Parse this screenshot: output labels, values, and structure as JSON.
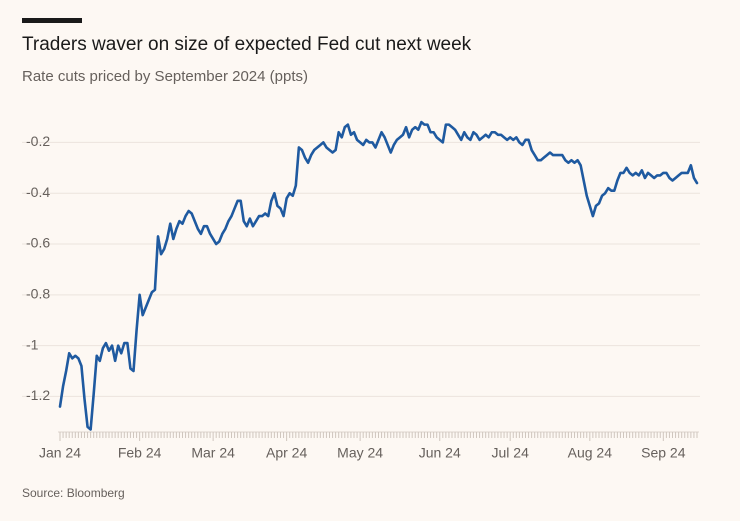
{
  "chart_data": {
    "type": "line",
    "title": "Traders waver on size of expected Fed cut next week",
    "subtitle": "Rate cuts priced by September 2024 (ppts)",
    "source": "Source: Bloomberg",
    "categories": [
      "Jan 24",
      null,
      null,
      null,
      null,
      null,
      null,
      null,
      null,
      null,
      null,
      null,
      null,
      null,
      null,
      null,
      null,
      null,
      null,
      null,
      null,
      null,
      null,
      null,
      null,
      null,
      "Feb 24",
      null,
      null,
      null,
      null,
      null,
      null,
      null,
      null,
      null,
      null,
      null,
      null,
      null,
      null,
      null,
      null,
      null,
      null,
      null,
      null,
      null,
      null,
      null,
      "Mar 24",
      null,
      null,
      null,
      null,
      null,
      null,
      null,
      null,
      null,
      null,
      null,
      null,
      null,
      null,
      null,
      null,
      null,
      null,
      null,
      null,
      null,
      null,
      null,
      "Apr 24",
      null,
      null,
      null,
      null,
      null,
      null,
      null,
      null,
      null,
      null,
      null,
      null,
      null,
      null,
      null,
      null,
      null,
      null,
      null,
      null,
      null,
      null,
      null,
      "May 24",
      null,
      null,
      null,
      null,
      null,
      null,
      null,
      null,
      null,
      null,
      null,
      null,
      null,
      null,
      null,
      null,
      null,
      null,
      null,
      null,
      null,
      null,
      null,
      null,
      null,
      "Jun 24",
      null,
      null,
      null,
      null,
      null,
      null,
      null,
      null,
      null,
      null,
      null,
      null,
      null,
      null,
      null,
      null,
      null,
      null,
      null,
      null,
      null,
      null,
      "Jul 24",
      null,
      null,
      null,
      null,
      null,
      null,
      null,
      null,
      null,
      null,
      null,
      null,
      null,
      null,
      null,
      null,
      null,
      null,
      null,
      null,
      null,
      null,
      null,
      null,
      null,
      "Aug 24",
      null,
      null,
      null,
      null,
      null,
      null,
      null,
      null,
      null,
      null,
      null,
      null,
      null,
      null,
      null,
      null,
      null,
      null,
      null,
      null,
      null,
      null,
      null,
      "Sep 24",
      null,
      null,
      null,
      null,
      null,
      null,
      null,
      null,
      null,
      null,
      null
    ],
    "values": [
      -1.24,
      -1.16,
      -1.1,
      -1.03,
      -1.05,
      -1.04,
      -1.05,
      -1.08,
      -1.21,
      -1.32,
      -1.33,
      -1.19,
      -1.04,
      -1.06,
      -1.01,
      -0.99,
      -1.02,
      -1.0,
      -1.06,
      -1.0,
      -1.03,
      -0.99,
      -0.99,
      -1.09,
      -1.1,
      -0.94,
      -0.8,
      -0.88,
      -0.85,
      -0.82,
      -0.79,
      -0.78,
      -0.57,
      -0.64,
      -0.62,
      -0.58,
      -0.52,
      -0.58,
      -0.54,
      -0.51,
      -0.52,
      -0.49,
      -0.47,
      -0.48,
      -0.51,
      -0.54,
      -0.56,
      -0.53,
      -0.53,
      -0.56,
      -0.58,
      -0.6,
      -0.59,
      -0.56,
      -0.54,
      -0.51,
      -0.49,
      -0.46,
      -0.43,
      -0.43,
      -0.51,
      -0.53,
      -0.5,
      -0.53,
      -0.51,
      -0.49,
      -0.49,
      -0.48,
      -0.49,
      -0.43,
      -0.4,
      -0.45,
      -0.46,
      -0.49,
      -0.42,
      -0.4,
      -0.41,
      -0.37,
      -0.22,
      -0.23,
      -0.26,
      -0.28,
      -0.25,
      -0.23,
      -0.22,
      -0.21,
      -0.2,
      -0.22,
      -0.23,
      -0.24,
      -0.23,
      -0.16,
      -0.18,
      -0.14,
      -0.13,
      -0.17,
      -0.16,
      -0.19,
      -0.2,
      -0.21,
      -0.19,
      -0.2,
      -0.2,
      -0.22,
      -0.19,
      -0.16,
      -0.18,
      -0.21,
      -0.24,
      -0.21,
      -0.19,
      -0.18,
      -0.17,
      -0.14,
      -0.18,
      -0.15,
      -0.14,
      -0.15,
      -0.12,
      -0.13,
      -0.13,
      -0.16,
      -0.16,
      -0.18,
      -0.19,
      -0.2,
      -0.13,
      -0.13,
      -0.14,
      -0.15,
      -0.17,
      -0.19,
      -0.16,
      -0.18,
      -0.19,
      -0.16,
      -0.17,
      -0.19,
      -0.18,
      -0.17,
      -0.18,
      -0.16,
      -0.16,
      -0.17,
      -0.17,
      -0.18,
      -0.19,
      -0.18,
      -0.19,
      -0.18,
      -0.2,
      -0.21,
      -0.19,
      -0.19,
      -0.23,
      -0.25,
      -0.27,
      -0.27,
      -0.26,
      -0.25,
      -0.24,
      -0.25,
      -0.25,
      -0.25,
      -0.25,
      -0.27,
      -0.28,
      -0.27,
      -0.28,
      -0.27,
      -0.29,
      -0.35,
      -0.41,
      -0.45,
      -0.49,
      -0.45,
      -0.44,
      -0.41,
      -0.4,
      -0.38,
      -0.39,
      -0.39,
      -0.35,
      -0.32,
      -0.32,
      -0.3,
      -0.32,
      -0.33,
      -0.32,
      -0.33,
      -0.31,
      -0.34,
      -0.32,
      -0.33,
      -0.34,
      -0.33,
      -0.33,
      -0.32,
      -0.32,
      -0.34,
      -0.35,
      -0.34,
      -0.33,
      -0.32,
      -0.32,
      -0.32,
      -0.29,
      -0.34,
      -0.36
    ],
    "color": "#1f5aa0",
    "ylim": [
      -1.34,
      -0.1
    ],
    "yticks": [
      -0.2,
      -0.4,
      -0.6,
      -0.8,
      -1.0,
      -1.2
    ],
    "grid": true
  }
}
